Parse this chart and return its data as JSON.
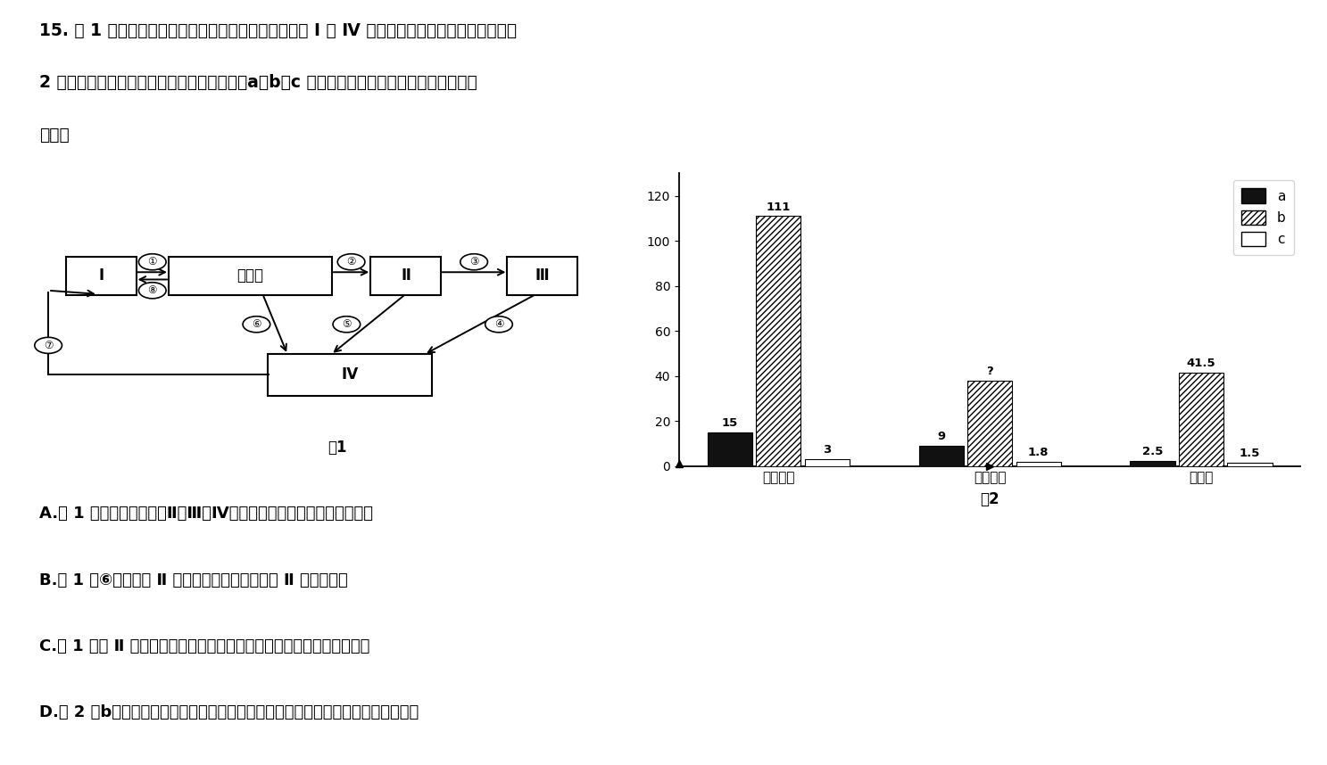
{
  "bar_categories": [
    "同化作用",
    "呼吸作用",
    "未利用"
  ],
  "bar_a_values": [
    15,
    9,
    2.5
  ],
  "bar_b_numeric": [
    111,
    38,
    41.5
  ],
  "bar_c_values": [
    3,
    1.8,
    1.5
  ],
  "bar_b_labels": [
    "111",
    "?",
    "41.5"
  ],
  "bar_a_labels": [
    "15",
    "9",
    "2.5"
  ],
  "bar_c_labels": [
    "3",
    "1.8",
    "1.5"
  ],
  "ylim": [
    0,
    130
  ],
  "yticks": [
    0,
    20,
    40,
    60,
    80,
    100,
    120
  ],
  "chart_subtitle": "图2",
  "title_line1": "15. 图 1 为某草原生态系统中部分碳循环示意图，其中 Ⅰ ～ Ⅳ 代表生态系统的不同组成成分；图",
  "title_line2": "2 为该生态系统两年内能量流动的部分数据（a、b、c 表示不同的营养级）。下列有关叙述正",
  "title_line3": "确的是",
  "answer_A": "A.图 1 中能量沿生产者、Ⅱ、Ⅲ和Ⅳ构成的食物链单向流动且逐级递减",
  "answer_B": "B.图 1 中⑥如果表示 Ⅱ 的粪便中的能量，则属于 Ⅱ 同化的能量",
  "answer_C": "C.图 1 所示 Ⅱ 的能量流动去向缺少呼吸作用中以热能的形式散失的部分",
  "answer_D": "D.图 2 中b代表生产者的能量，且该生态系统中能量传递效率随营养级的升高而升高",
  "node_labels": {
    "I": "Ⅰ",
    "prod": "生产者",
    "II": "Ⅱ",
    "III": "Ⅲ",
    "IV": "Ⅳ"
  },
  "fig1_label": "图1",
  "fig2_label": "图2",
  "legend_a": "a",
  "legend_b": "b",
  "legend_c": "c"
}
